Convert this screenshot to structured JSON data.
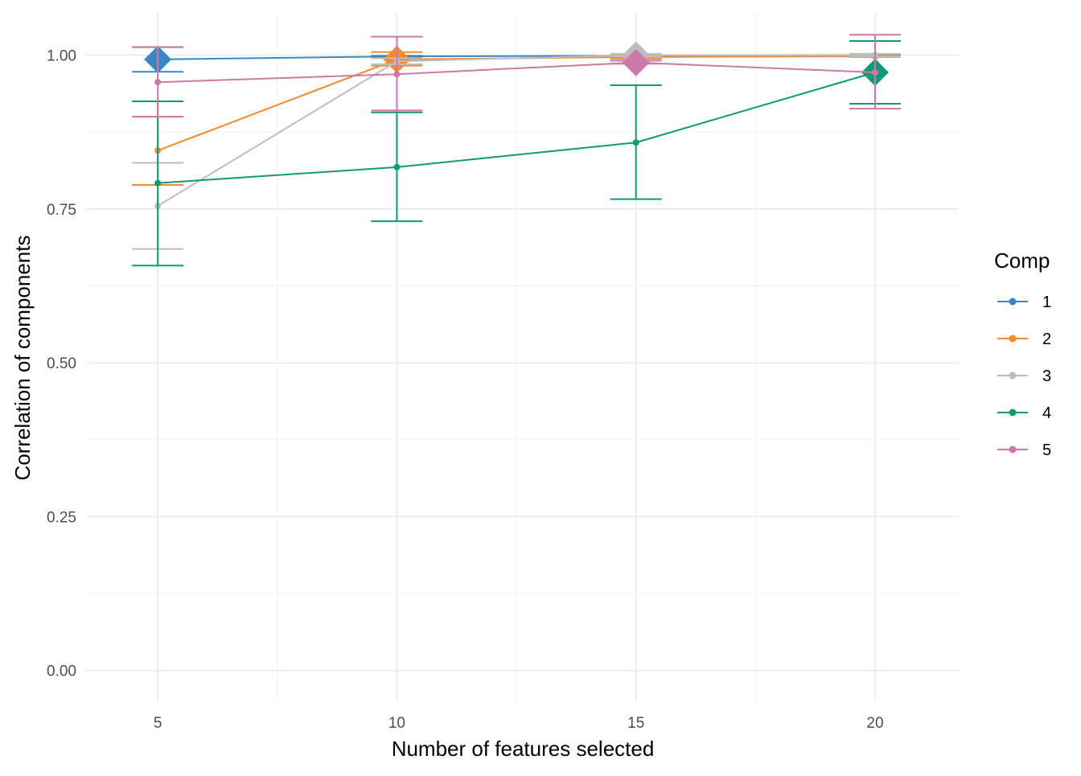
{
  "chart_data": {
    "type": "line",
    "title": "",
    "xlabel": "Number of features selected",
    "ylabel": "Correlation of components",
    "x": [
      5,
      10,
      15,
      20
    ],
    "x_ticks": [
      "5",
      "10",
      "15",
      "20"
    ],
    "y_ticks": [
      "0.00",
      "0.25",
      "0.50",
      "0.75",
      "1.00"
    ],
    "xlim": [
      3.5,
      21.75
    ],
    "ylim": [
      -0.05,
      1.07
    ],
    "grid": true,
    "legend": {
      "title": "Comp",
      "position": "right",
      "entries": [
        "1",
        "2",
        "3",
        "4",
        "5"
      ]
    },
    "series": [
      {
        "name": "1",
        "color": "#3a87c8",
        "values": [
          0.993,
          0.998,
          0.999,
          1.0
        ],
        "error_low": [
          0.973,
          0.997,
          0.998,
          0.999
        ],
        "error_high": [
          1.013,
          0.999,
          1.0,
          1.001
        ],
        "highlight": [
          true,
          false,
          false,
          false
        ]
      },
      {
        "name": "2",
        "color": "#f28a30",
        "values": [
          0.845,
          0.993,
          0.997,
          0.998
        ],
        "error_low": [
          0.789,
          0.983,
          0.994,
          0.997
        ],
        "error_high": [
          0.9,
          1.005,
          1.0,
          0.999
        ],
        "highlight": [
          false,
          true,
          false,
          false
        ]
      },
      {
        "name": "3",
        "color": "#bdbdbd",
        "values": [
          0.755,
          0.99,
          1.0,
          1.0
        ],
        "error_low": [
          0.685,
          0.985,
          0.998,
          0.998
        ],
        "error_high": [
          0.825,
          0.995,
          1.002,
          1.002
        ],
        "highlight": [
          false,
          false,
          true,
          false
        ]
      },
      {
        "name": "4",
        "color": "#119a75",
        "values": [
          0.792,
          0.818,
          0.858,
          0.972
        ],
        "error_low": [
          0.658,
          0.73,
          0.766,
          0.921
        ],
        "error_high": [
          0.925,
          0.907,
          0.951,
          1.023
        ],
        "highlight": [
          false,
          false,
          false,
          true
        ]
      },
      {
        "name": "5",
        "color": "#cc79a7",
        "values": [
          0.956,
          0.969,
          0.988,
          0.972
        ],
        "error_low": [
          0.9,
          0.91,
          0.986,
          0.913
        ],
        "error_high": [
          1.013,
          1.03,
          0.991,
          1.033
        ],
        "highlight": [
          false,
          false,
          true,
          false
        ]
      }
    ]
  }
}
